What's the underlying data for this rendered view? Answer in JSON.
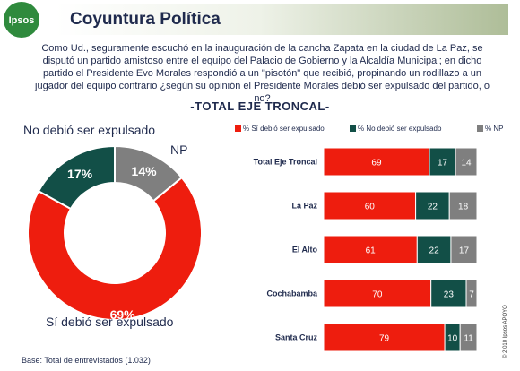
{
  "header": {
    "logo": "Ipsos",
    "title": "Coyuntura Política"
  },
  "question": "Como Ud., seguramente escuchó en la inauguración de la cancha Zapata en la ciudad de La Paz, se disputó un partido amistoso entre el equipo del Palacio de Gobierno y la Alcaldía Municipal; en dicho partido el Presidente Evo Morales respondió a un \"pisotón\" que recibió, propinando un rodillazo a un jugador del equipo contrario ¿según su opinión el Presidente Morales debió ser expulsado del partido, o no?",
  "subtitle": "-TOTAL EJE TRONCAL-",
  "footer": {
    "base": "Base: Total de entrevistados (1.032)",
    "copyright": "© 2 010 Ipsos APOYO"
  },
  "colors": {
    "si": "#ee1d0e",
    "no": "#124f47",
    "np": "#7f7f7f",
    "title": "#1f2a4d"
  },
  "chart_data": [
    {
      "type": "pie",
      "categories": [
        "Sí debió ser expulsado",
        "No debió ser expulsado",
        "NP"
      ],
      "values": [
        69,
        17,
        14
      ],
      "value_labels": [
        "69%",
        "17%",
        "14%"
      ]
    },
    {
      "type": "bar",
      "orientation": "horizontal",
      "stacked": true,
      "categories": [
        "Total Eje Troncal",
        "La Paz",
        "El Alto",
        "Cochabamba",
        "Santa Cruz"
      ],
      "series": [
        {
          "name": "% Sí debió ser expulsado",
          "values": [
            69,
            60,
            61,
            70,
            79
          ]
        },
        {
          "name": "% No debió ser expulsado",
          "values": [
            17,
            22,
            22,
            23,
            10
          ]
        },
        {
          "name": "% NP",
          "values": [
            14,
            18,
            17,
            7,
            11
          ]
        }
      ],
      "legend": "top",
      "grid": false
    }
  ]
}
